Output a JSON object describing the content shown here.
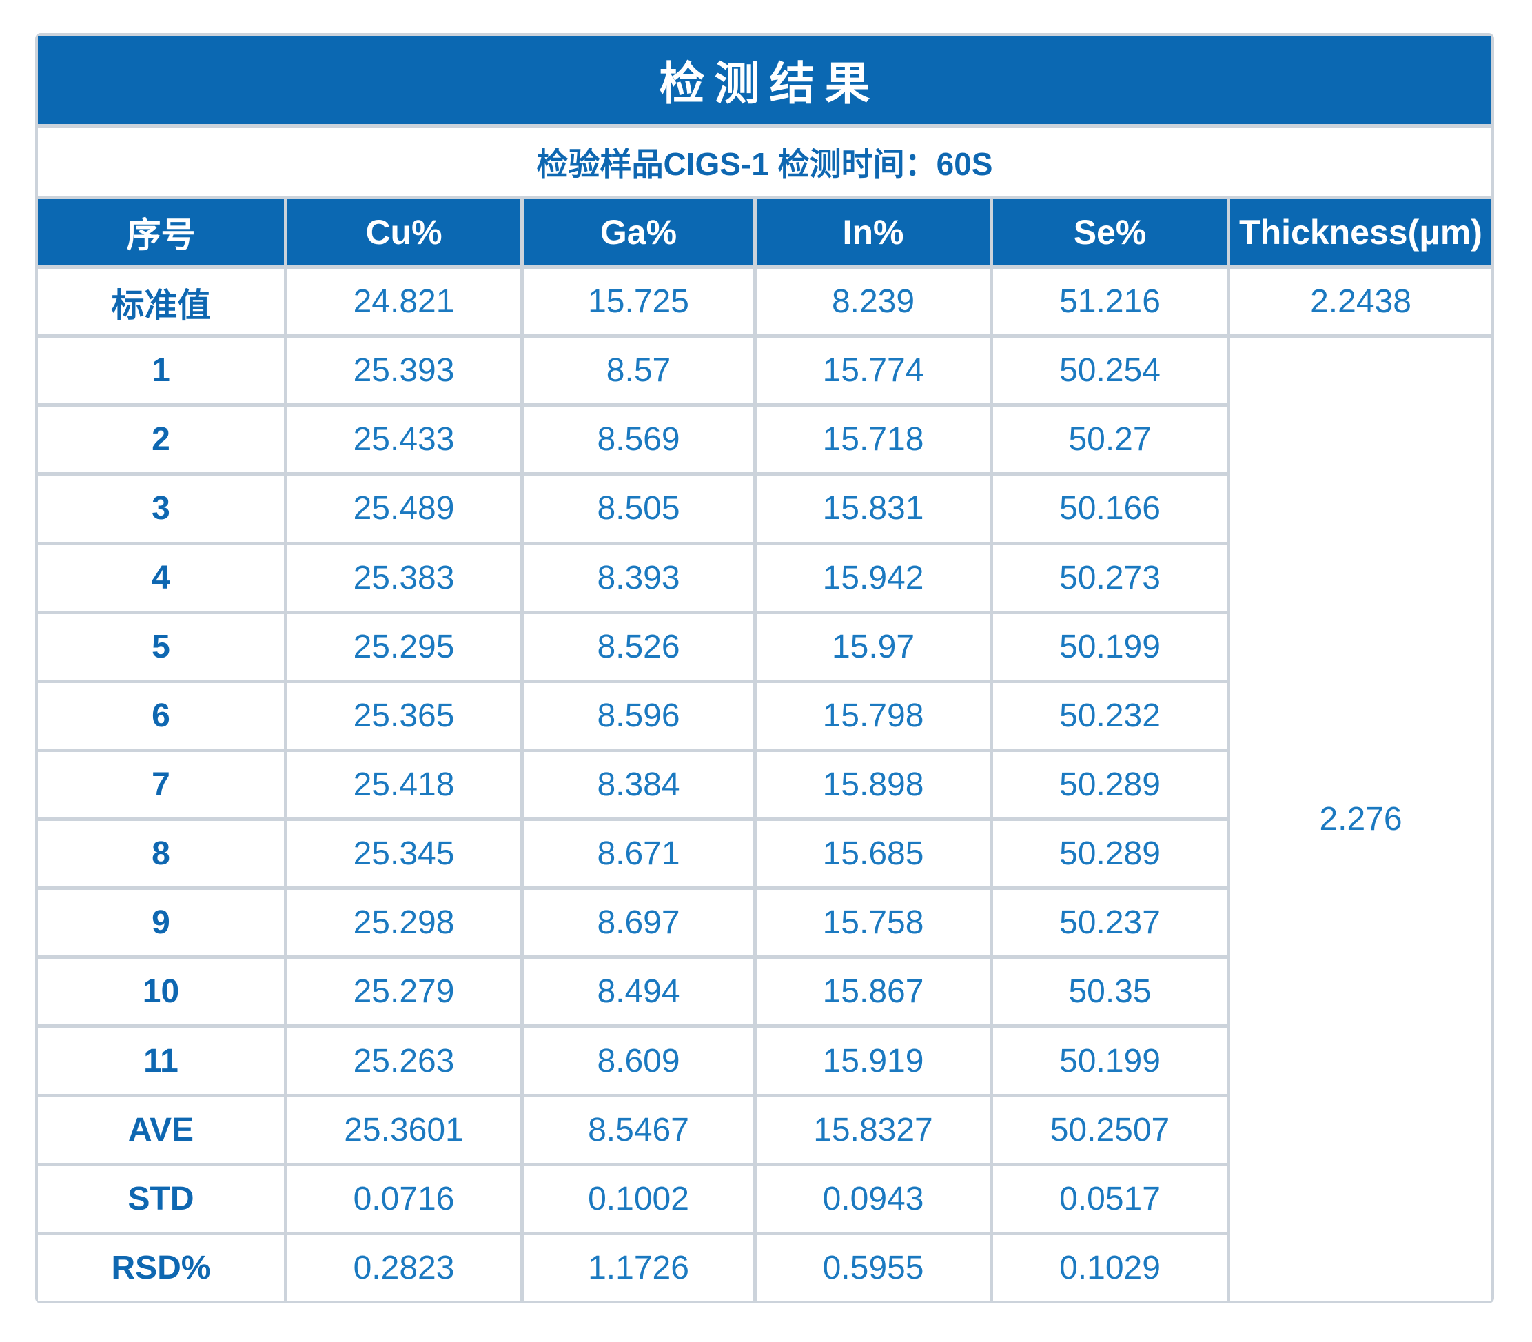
{
  "title": "检测结果",
  "subtitle": "检验样品CIGS-1 检测时间：60S",
  "colors": {
    "header_blue": "#0b68b2",
    "value_text_blue": "#1b79c0",
    "label_text_blue": "#0e67b1",
    "gridline_gray": "#ccd3db",
    "header_text_white": "#ffffff",
    "background_white": "#ffffff"
  },
  "table": {
    "headers": [
      "序号",
      "Cu%",
      "Ga%",
      "In%",
      "Se%",
      "Thickness(μm)"
    ],
    "standard": {
      "label": "标准值",
      "values": [
        "24.821",
        "15.725",
        "8.239",
        "51.216"
      ],
      "thickness": "2.2438"
    },
    "thickness_merged": "2.276",
    "rows": [
      [
        "1",
        "25.393",
        "8.57",
        "15.774",
        "50.254"
      ],
      [
        "2",
        "25.433",
        "8.569",
        "15.718",
        "50.27"
      ],
      [
        "3",
        "25.489",
        "8.505",
        "15.831",
        "50.166"
      ],
      [
        "4",
        "25.383",
        "8.393",
        "15.942",
        "50.273"
      ],
      [
        "5",
        "25.295",
        "8.526",
        "15.97",
        "50.199"
      ],
      [
        "6",
        "25.365",
        "8.596",
        "15.798",
        "50.232"
      ],
      [
        "7",
        "25.418",
        "8.384",
        "15.898",
        "50.289"
      ],
      [
        "8",
        "25.345",
        "8.671",
        "15.685",
        "50.289"
      ],
      [
        "9",
        "25.298",
        "8.697",
        "15.758",
        "50.237"
      ],
      [
        "10",
        "25.279",
        "8.494",
        "15.867",
        "50.35"
      ],
      [
        "11",
        "25.263",
        "8.609",
        "15.919",
        "50.199"
      ],
      [
        "AVE",
        "25.3601",
        "8.5467",
        "15.8327",
        "50.2507"
      ],
      [
        "STD",
        "0.0716",
        "0.1002",
        "0.0943",
        "0.0517"
      ],
      [
        "RSD%",
        "0.2823",
        "1.1726",
        "0.5955",
        "0.1029"
      ]
    ]
  }
}
